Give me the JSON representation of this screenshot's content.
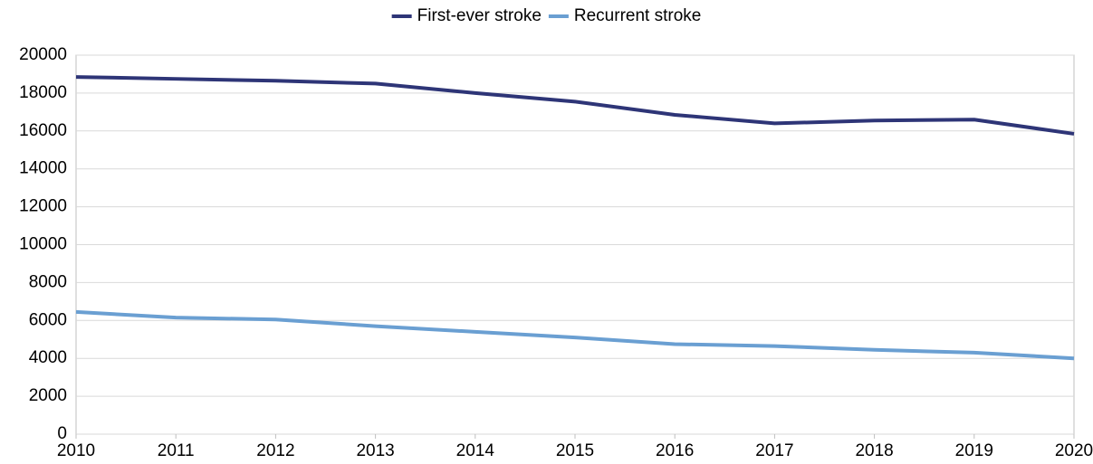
{
  "chart_data": {
    "type": "line",
    "x": [
      2010,
      2011,
      2012,
      2013,
      2014,
      2015,
      2016,
      2017,
      2018,
      2019,
      2020
    ],
    "series": [
      {
        "name": "First-ever stroke",
        "color": "#2e3577",
        "values": [
          18850,
          18750,
          18650,
          18500,
          18000,
          17550,
          16850,
          16400,
          16550,
          16600,
          15850
        ]
      },
      {
        "name": "Recurrent stroke",
        "color": "#6a9fd2",
        "values": [
          6450,
          6150,
          6050,
          5700,
          5400,
          5100,
          4750,
          4650,
          4450,
          4300,
          4000
        ]
      }
    ],
    "xlim": [
      2010,
      2020
    ],
    "xticks": [
      2010,
      2011,
      2012,
      2013,
      2014,
      2015,
      2016,
      2017,
      2018,
      2019,
      2020
    ],
    "ylim": [
      0,
      20000
    ],
    "yticks": [
      0,
      2000,
      4000,
      6000,
      8000,
      10000,
      12000,
      14000,
      16000,
      18000,
      20000
    ],
    "grid": true,
    "legend": "top"
  }
}
